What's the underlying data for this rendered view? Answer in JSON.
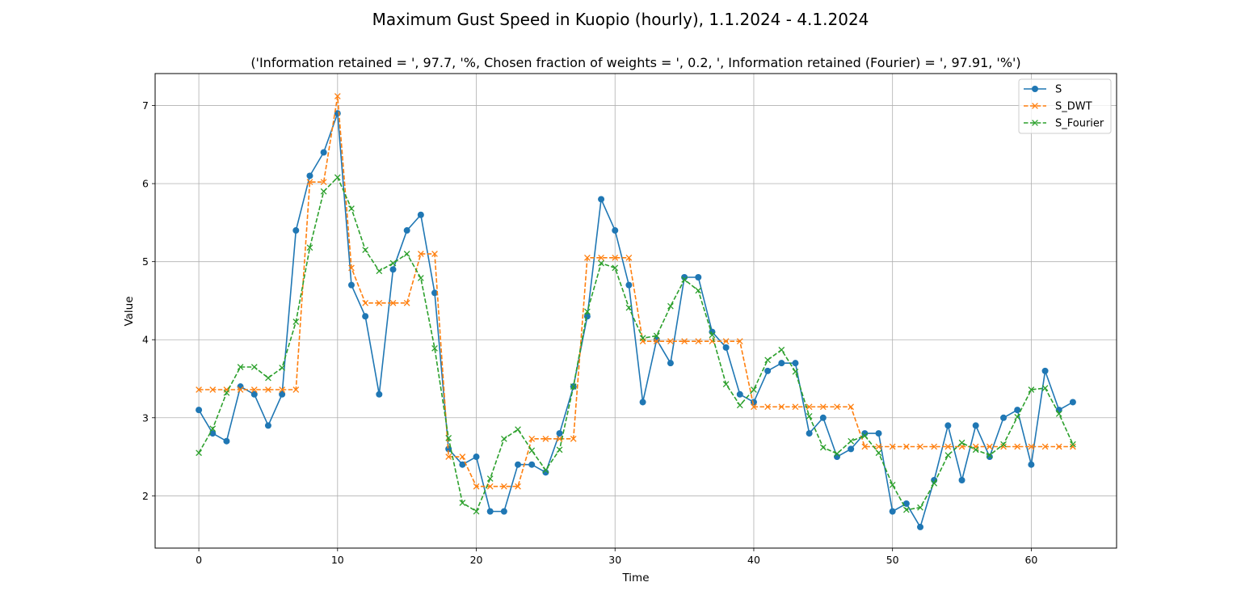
{
  "chart_data": {
    "type": "line",
    "suptitle": "Maximum Gust Speed in Kuopio (hourly), 1.1.2024 - 4.1.2024",
    "title": "('Information retained = ', 97.7, '%, Chosen fraction of weights = ', 0.2, ', Information retained (Fourier) = ', 97.91, '%')",
    "xlabel": "Time",
    "ylabel": "Value",
    "xlim": [
      -3.15,
      66.15
    ],
    "ylim": [
      1.33,
      7.41
    ],
    "xticks": [
      0,
      10,
      20,
      30,
      40,
      50,
      60
    ],
    "yticks": [
      2,
      3,
      4,
      5,
      6,
      7
    ],
    "grid": true,
    "legend_position": "top-right",
    "series": [
      {
        "name": "S",
        "color": "#1f77b4",
        "style": "solid",
        "marker": "circle",
        "values": [
          3.1,
          2.8,
          2.7,
          3.4,
          3.3,
          2.9,
          3.3,
          5.4,
          6.1,
          6.4,
          6.9,
          4.7,
          4.3,
          3.3,
          4.9,
          5.4,
          5.6,
          4.6,
          2.6,
          2.4,
          2.5,
          1.8,
          1.8,
          2.4,
          2.4,
          2.3,
          2.8,
          3.4,
          4.3,
          5.8,
          5.4,
          4.7,
          3.2,
          4.0,
          3.7,
          4.8,
          4.8,
          4.1,
          3.9,
          3.3,
          3.2,
          3.6,
          3.7,
          3.7,
          2.8,
          3.0,
          2.5,
          2.6,
          2.8,
          2.8,
          1.8,
          1.9,
          1.6,
          2.2,
          2.9,
          2.2,
          2.9,
          2.5,
          3.0,
          3.1,
          2.4,
          3.6,
          3.1,
          3.2
        ]
      },
      {
        "name": "S_DWT",
        "color": "#ff7f0e",
        "style": "dashed",
        "marker": "x",
        "values": [
          3.36,
          3.36,
          3.36,
          3.36,
          3.36,
          3.36,
          3.36,
          3.36,
          6.02,
          6.02,
          7.12,
          4.92,
          4.47,
          4.47,
          4.47,
          4.47,
          5.1,
          5.1,
          2.5,
          2.5,
          2.12,
          2.12,
          2.12,
          2.12,
          2.73,
          2.73,
          2.73,
          2.73,
          5.05,
          5.05,
          5.05,
          5.05,
          3.98,
          3.98,
          3.98,
          3.98,
          3.98,
          3.98,
          3.98,
          3.98,
          3.14,
          3.14,
          3.14,
          3.14,
          3.14,
          3.14,
          3.14,
          3.14,
          2.63,
          2.63,
          2.63,
          2.63,
          2.63,
          2.63,
          2.63,
          2.63,
          2.63,
          2.63,
          2.63,
          2.63,
          2.63,
          2.63,
          2.63,
          2.63
        ]
      },
      {
        "name": "S_Fourier",
        "color": "#2ca02c",
        "style": "dashed",
        "marker": "x",
        "values": [
          2.55,
          2.86,
          3.32,
          3.65,
          3.65,
          3.51,
          3.64,
          4.23,
          5.18,
          5.9,
          6.08,
          5.68,
          5.15,
          4.88,
          4.98,
          5.1,
          4.79,
          3.89,
          2.74,
          1.91,
          1.8,
          2.22,
          2.73,
          2.85,
          2.58,
          2.33,
          2.59,
          3.4,
          4.36,
          4.98,
          4.92,
          4.41,
          4.02,
          4.05,
          4.43,
          4.77,
          4.63,
          4.06,
          3.43,
          3.16,
          3.36,
          3.74,
          3.87,
          3.59,
          3.02,
          2.62,
          2.54,
          2.7,
          2.77,
          2.55,
          2.14,
          1.82,
          1.85,
          2.16,
          2.52,
          2.68,
          2.59,
          2.52,
          2.66,
          3.01,
          3.36,
          3.38,
          3.05,
          2.66
        ]
      }
    ]
  }
}
